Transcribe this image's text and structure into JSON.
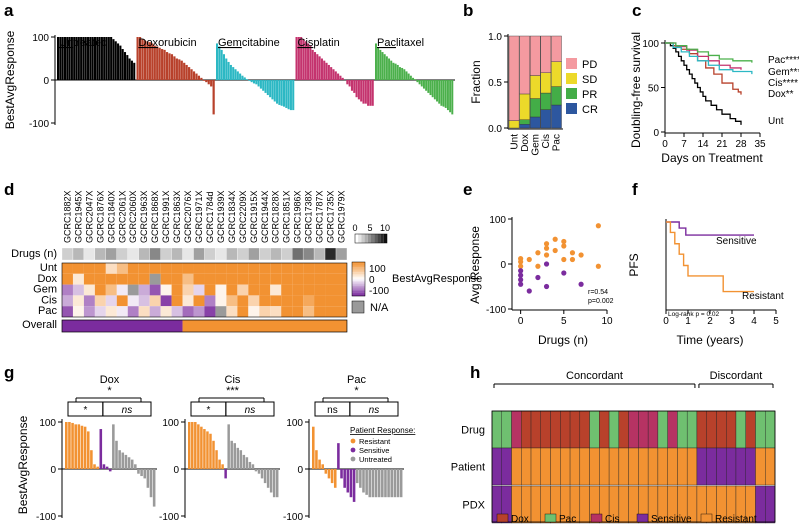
{
  "panel_labels": [
    "a",
    "b",
    "c",
    "d",
    "e",
    "f",
    "g",
    "h"
  ],
  "colors": {
    "untreated": "#000000",
    "doxorubicin": "#b8412b",
    "gemcitabine": "#2cb8c4",
    "cisplatin": "#c4336e",
    "paclitaxel": "#4bb04b",
    "PD": "#f49aa0",
    "SD": "#ecd92a",
    "PR": "#43ad47",
    "CR": "#2d579f",
    "sensitive": "#7b2c9e",
    "resistant": "#f29232",
    "untreated_gray": "#9a9a9a",
    "dox_key": "#b8412b",
    "pac_key": "#6fc070",
    "cis_key": "#b63363",
    "na": "#9a9a9a"
  },
  "chart_data": [
    {
      "panel": "a",
      "type": "bar",
      "ylabel": "BestAvgResponse",
      "ylim": [
        -100,
        100
      ],
      "yticks": [
        100,
        0,
        -100
      ],
      "groups": [
        {
          "key": "untreated",
          "label": "Untreated",
          "values": [
            100,
            100,
            100,
            100,
            100,
            100,
            100,
            100,
            100,
            100,
            100,
            100,
            100,
            100,
            100,
            100,
            100,
            100,
            100,
            100,
            100,
            100,
            100,
            100,
            95,
            90,
            85,
            80,
            72,
            65,
            58,
            50,
            45,
            40
          ]
        },
        {
          "key": "doxorubicin",
          "label": "Doxorubicin",
          "values": [
            100,
            100,
            95,
            92,
            90,
            88,
            85,
            80,
            78,
            75,
            72,
            70,
            65,
            62,
            60,
            55,
            50,
            48,
            45,
            40,
            35,
            30,
            25,
            20,
            15,
            10,
            5,
            -2,
            -5,
            -10,
            -15,
            -80
          ]
        },
        {
          "key": "gemcitabine",
          "label": "Gemcitabine",
          "values": [
            85,
            78,
            70,
            60,
            50,
            42,
            35,
            30,
            25,
            20,
            15,
            10,
            6,
            2,
            -2,
            -5,
            -8,
            -10,
            -15,
            -20,
            -25,
            -30,
            -35,
            -40,
            -45,
            -50,
            -55,
            -58,
            -60,
            -62,
            -65,
            -68,
            -70,
            -70
          ]
        },
        {
          "key": "cisplatin",
          "label": "Cisplatin",
          "values": [
            100,
            100,
            100,
            95,
            90,
            85,
            80,
            70,
            65,
            60,
            55,
            50,
            45,
            40,
            35,
            30,
            25,
            20,
            15,
            10,
            5,
            0,
            -10,
            -15,
            -25,
            -30,
            -40,
            -45,
            -50,
            -55,
            -55,
            -60,
            -60,
            -60
          ]
        },
        {
          "key": "paclitaxel",
          "label": "Paclitaxel",
          "values": [
            85,
            75,
            70,
            65,
            60,
            55,
            50,
            45,
            40,
            38,
            35,
            30,
            28,
            25,
            20,
            15,
            10,
            5,
            2,
            -5,
            -10,
            -15,
            -20,
            -25,
            -30,
            -35,
            -40,
            -45,
            -50,
            -55,
            -60,
            -62,
            -65,
            -70,
            -75,
            -80
          ]
        }
      ]
    },
    {
      "panel": "b",
      "type": "bar",
      "ylabel": "Fraction",
      "ylim": [
        0,
        1.0
      ],
      "yticks": [
        "0.0",
        "0.5",
        "1.0"
      ],
      "categories": [
        "Unt",
        "Dox",
        "Gem",
        "Cis",
        "Pac"
      ],
      "series": [
        {
          "name": "CR",
          "values": [
            0,
            0.04,
            0.12,
            0.2,
            0.25
          ]
        },
        {
          "name": "PR",
          "values": [
            0,
            0.05,
            0.2,
            0.18,
            0.2
          ]
        },
        {
          "name": "SD",
          "values": [
            0.08,
            0.28,
            0.25,
            0.22,
            0.27
          ]
        },
        {
          "name": "PD",
          "values": [
            0.92,
            0.63,
            0.43,
            0.4,
            0.28
          ]
        }
      ],
      "legend": [
        "PD",
        "SD",
        "PR",
        "CR"
      ]
    },
    {
      "panel": "c",
      "type": "line",
      "ylabel": "Doubling-free survival",
      "xlabel": "Days on Treatment",
      "xlim": [
        0,
        35
      ],
      "ylim": [
        0,
        100
      ],
      "xticks": [
        "0",
        "7",
        "14",
        "21",
        "28",
        "35"
      ],
      "yticks": [
        "0",
        "50",
        "100"
      ],
      "series": [
        {
          "name": "Unt",
          "label": "Unt",
          "color": "#000000",
          "x": [
            0,
            2,
            3,
            4,
            5,
            6,
            7,
            8,
            9,
            10,
            11,
            12,
            13,
            14,
            15,
            17,
            19,
            21,
            24,
            26,
            28
          ],
          "y": [
            100,
            97,
            94,
            90,
            85,
            80,
            75,
            70,
            65,
            60,
            55,
            50,
            45,
            40,
            35,
            30,
            25,
            20,
            15,
            12,
            8
          ]
        },
        {
          "name": "Dox",
          "label": "Dox**",
          "color": "#b8412b",
          "x": [
            0,
            3,
            6,
            9,
            12,
            15,
            18,
            21,
            25,
            27,
            28
          ],
          "y": [
            100,
            97,
            93,
            88,
            80,
            72,
            65,
            55,
            48,
            45,
            42
          ]
        },
        {
          "name": "Cis",
          "label": "Cis****",
          "color": "#c4336e",
          "x": [
            0,
            4,
            8,
            12,
            16,
            20,
            24,
            28
          ],
          "y": [
            100,
            96,
            92,
            85,
            80,
            75,
            72,
            70
          ]
        },
        {
          "name": "Gem",
          "label": "Gem****",
          "color": "#2cb8c4",
          "x": [
            0,
            3,
            6,
            9,
            12,
            16,
            20,
            25,
            32
          ],
          "y": [
            100,
            95,
            90,
            85,
            80,
            75,
            70,
            68,
            65
          ]
        },
        {
          "name": "Pac",
          "label": "Pac****",
          "color": "#4bb04b",
          "x": [
            0,
            4,
            8,
            12,
            16,
            20,
            25,
            32
          ],
          "y": [
            100,
            97,
            93,
            90,
            86,
            82,
            80,
            78
          ]
        }
      ]
    },
    {
      "panel": "d",
      "type": "heatmap",
      "columns": [
        "GCRC1882X",
        "GCRC1945X",
        "GCRC2047X",
        "GCRC1876X",
        "GCRC1840X",
        "GCRC2061X",
        "GCRC2060X",
        "GCRC1963X",
        "GCRC1868X",
        "GCRC1991X",
        "GCRC1863X",
        "GCRC2076X",
        "GCRC1971X",
        "GCRC1784d",
        "GCRC1939X",
        "GCRC1834X",
        "GCRC2209X",
        "GCRC1915X",
        "GCRC1944X",
        "GCRC1828X",
        "GCRC1851X",
        "GCRC1986X",
        "GCRC1738X",
        "GCRC1787X",
        "GCRC1735X",
        "GCRC1979X"
      ],
      "drugs_label": "Drugs (n)",
      "drugs_scale": [
        "0",
        "5",
        "10"
      ],
      "drugs_n": [
        2,
        3,
        1,
        3,
        4,
        2,
        1,
        3,
        5,
        2,
        3,
        1,
        4,
        2,
        1,
        3,
        2,
        4,
        2,
        3,
        2,
        6,
        5,
        3,
        9,
        4
      ],
      "rows": [
        "Unt",
        "Dox",
        "Gem",
        "Cis",
        "Pac"
      ],
      "values": [
        [
          100,
          100,
          100,
          100,
          30,
          60,
          100,
          100,
          100,
          100,
          100,
          100,
          100,
          100,
          100,
          100,
          100,
          100,
          100,
          100,
          100,
          100,
          100,
          100,
          100,
          100
        ],
        [
          100,
          20,
          100,
          100,
          100,
          100,
          100,
          100,
          null,
          100,
          100,
          60,
          100,
          100,
          100,
          100,
          100,
          100,
          100,
          100,
          100,
          100,
          100,
          100,
          100,
          100
        ],
        [
          -60,
          -30,
          20,
          100,
          60,
          -10,
          null,
          -40,
          -80,
          10,
          100,
          40,
          -20,
          100,
          10,
          100,
          40,
          100,
          100,
          20,
          100,
          100,
          100,
          100,
          100,
          100
        ],
        [
          -40,
          20,
          -60,
          40,
          -20,
          100,
          -10,
          -30,
          40,
          -90,
          100,
          20,
          100,
          -60,
          10,
          60,
          100,
          40,
          100,
          100,
          100,
          100,
          80,
          100,
          100,
          100
        ],
        [
          -80,
          10,
          -50,
          -20,
          20,
          -10,
          -60,
          30,
          -40,
          20,
          -30,
          -70,
          -50,
          -90,
          null,
          30,
          100,
          10,
          40,
          30,
          100,
          100,
          60,
          100,
          100,
          100
        ]
      ],
      "colorbar_label": "BestAvgResponse",
      "colorbar_ticks": [
        "100",
        "0",
        "-100"
      ],
      "na_label": "N/A",
      "overall_label": "Overall",
      "overall_sensitive_count": 11,
      "overall_resistant_count": 15
    },
    {
      "panel": "e",
      "type": "scatter",
      "xlabel": "Drugs (n)",
      "ylabel": "Avg Response",
      "xlim": [
        -1,
        10
      ],
      "ylim": [
        -100,
        100
      ],
      "xticks": [
        "0",
        "5",
        "10"
      ],
      "yticks": [
        "100",
        "0",
        "-100"
      ],
      "annotation": [
        "r=0.54",
        "p=0.002"
      ],
      "series": [
        {
          "name": "Resistant",
          "x": [
            0,
            0,
            0,
            1,
            2,
            2,
            3,
            3,
            3,
            4,
            4,
            5,
            5,
            5,
            6,
            6,
            7,
            9,
            9
          ],
          "y": [
            -5,
            5,
            12,
            10,
            -5,
            25,
            20,
            35,
            45,
            30,
            55,
            10,
            40,
            50,
            25,
            10,
            20,
            85,
            -5
          ]
        },
        {
          "name": "Sensitive",
          "x": [
            0,
            0,
            0,
            0,
            1,
            2,
            3,
            3,
            5,
            7
          ],
          "y": [
            -25,
            -35,
            -45,
            -15,
            -60,
            -30,
            0,
            -50,
            -20,
            -45
          ]
        }
      ]
    },
    {
      "panel": "f",
      "type": "line",
      "ylabel": "PFS",
      "xlabel": "Time (years)",
      "xlim": [
        0,
        5
      ],
      "ylim": [
        0,
        100
      ],
      "xticks": [
        "0",
        "1",
        "2",
        "3",
        "4",
        "5"
      ],
      "annotation": "Log-rank p = 0.02",
      "series": [
        {
          "name": "Sensitive",
          "color": "#7b2c9e",
          "x": [
            0,
            0.6,
            0.9,
            4
          ],
          "y": [
            100,
            93,
            85,
            85
          ]
        },
        {
          "name": "Resistant",
          "color": "#f29232",
          "x": [
            0,
            0.2,
            0.4,
            0.6,
            0.8,
            1.0,
            2.6,
            4.0
          ],
          "y": [
            100,
            88,
            75,
            63,
            50,
            38,
            20,
            20
          ]
        }
      ]
    },
    {
      "panel": "g",
      "type": "bar",
      "ylabel": "BestAvgResponse",
      "ylim": [
        -100,
        100
      ],
      "yticks": [
        "100",
        "0",
        "-100"
      ],
      "ns": "ns",
      "star": "*",
      "legend_title": "Patient Response:",
      "legend": [
        {
          "key": "resistant",
          "label": "Resistant"
        },
        {
          "key": "sensitive",
          "label": "Sensitive"
        },
        {
          "key": "untreated",
          "label": "Untreated"
        }
      ],
      "subplots": [
        {
          "title": "Dox",
          "sig": "*",
          "resistant": [
            100,
            100,
            98,
            95,
            95,
            92,
            90,
            80,
            40,
            10,
            5
          ],
          "sensitive": [
            85,
            10,
            5,
            -5
          ],
          "untreated": [
            95,
            60,
            40,
            35,
            30,
            25,
            20,
            10,
            -10,
            -15,
            -20,
            -40,
            -60,
            -80
          ]
        },
        {
          "title": "Cis",
          "sig": "***",
          "resistant": [
            100,
            100,
            100,
            95,
            90,
            85,
            80,
            75,
            60,
            40,
            20,
            10
          ],
          "sensitive": [
            -20
          ],
          "untreated": [
            95,
            60,
            55,
            45,
            40,
            30,
            25,
            15,
            10,
            -5,
            -10,
            -20,
            -30,
            -40,
            -50,
            -60,
            -60
          ]
        },
        {
          "title": "Pac",
          "sig": "*",
          "resistant": [
            90,
            40,
            20,
            10,
            -10,
            -20,
            -30,
            -40
          ],
          "sensitive": [
            55,
            -20,
            -40,
            -50,
            -60,
            -70
          ],
          "untreated": [
            -30,
            -40,
            -50,
            -55,
            -60,
            -60,
            -60,
            -60,
            -60,
            -60,
            -60,
            -60,
            -60,
            -60,
            -60
          ]
        }
      ]
    },
    {
      "panel": "h",
      "type": "heatmap",
      "groups": [
        "Concordant",
        "Discordant"
      ],
      "concordant_count": 21,
      "rows": [
        "Drug",
        "Patient",
        "PDX"
      ],
      "drug": [
        "Pac",
        "Pac",
        "Cis",
        "Dox",
        "Dox",
        "Dox",
        "Dox",
        "Dox",
        "Dox",
        "Dox",
        "Pac",
        "Dox",
        "Pac",
        "Dox",
        "Cis",
        "Cis",
        "Cis",
        "Pac",
        "Cis",
        "Pac",
        "Pac",
        "Dox",
        "Dox",
        "Dox",
        "Dox",
        "Pac",
        "Dox",
        "Pac",
        "Pac"
      ],
      "patient": [
        "S",
        "S",
        "R",
        "R",
        "R",
        "R",
        "R",
        "R",
        "R",
        "R",
        "R",
        "R",
        "R",
        "R",
        "R",
        "R",
        "R",
        "R",
        "R",
        "R",
        "R",
        "S",
        "S",
        "S",
        "S",
        "S",
        "S",
        "R",
        "R"
      ],
      "pdx": [
        "S",
        "S",
        "R",
        "R",
        "R",
        "R",
        "R",
        "R",
        "R",
        "R",
        "R",
        "R",
        "R",
        "R",
        "R",
        "R",
        "R",
        "R",
        "R",
        "R",
        "R",
        "R",
        "R",
        "R",
        "R",
        "R",
        "R",
        "S",
        "S"
      ],
      "legend": [
        {
          "key": "dox_key",
          "label": "Dox"
        },
        {
          "key": "pac_key",
          "label": "Pac"
        },
        {
          "key": "cis_key",
          "label": "Cis"
        },
        {
          "key": "sensitive",
          "label": "Sensitive"
        },
        {
          "key": "resistant",
          "label": "Resistant"
        }
      ]
    }
  ]
}
